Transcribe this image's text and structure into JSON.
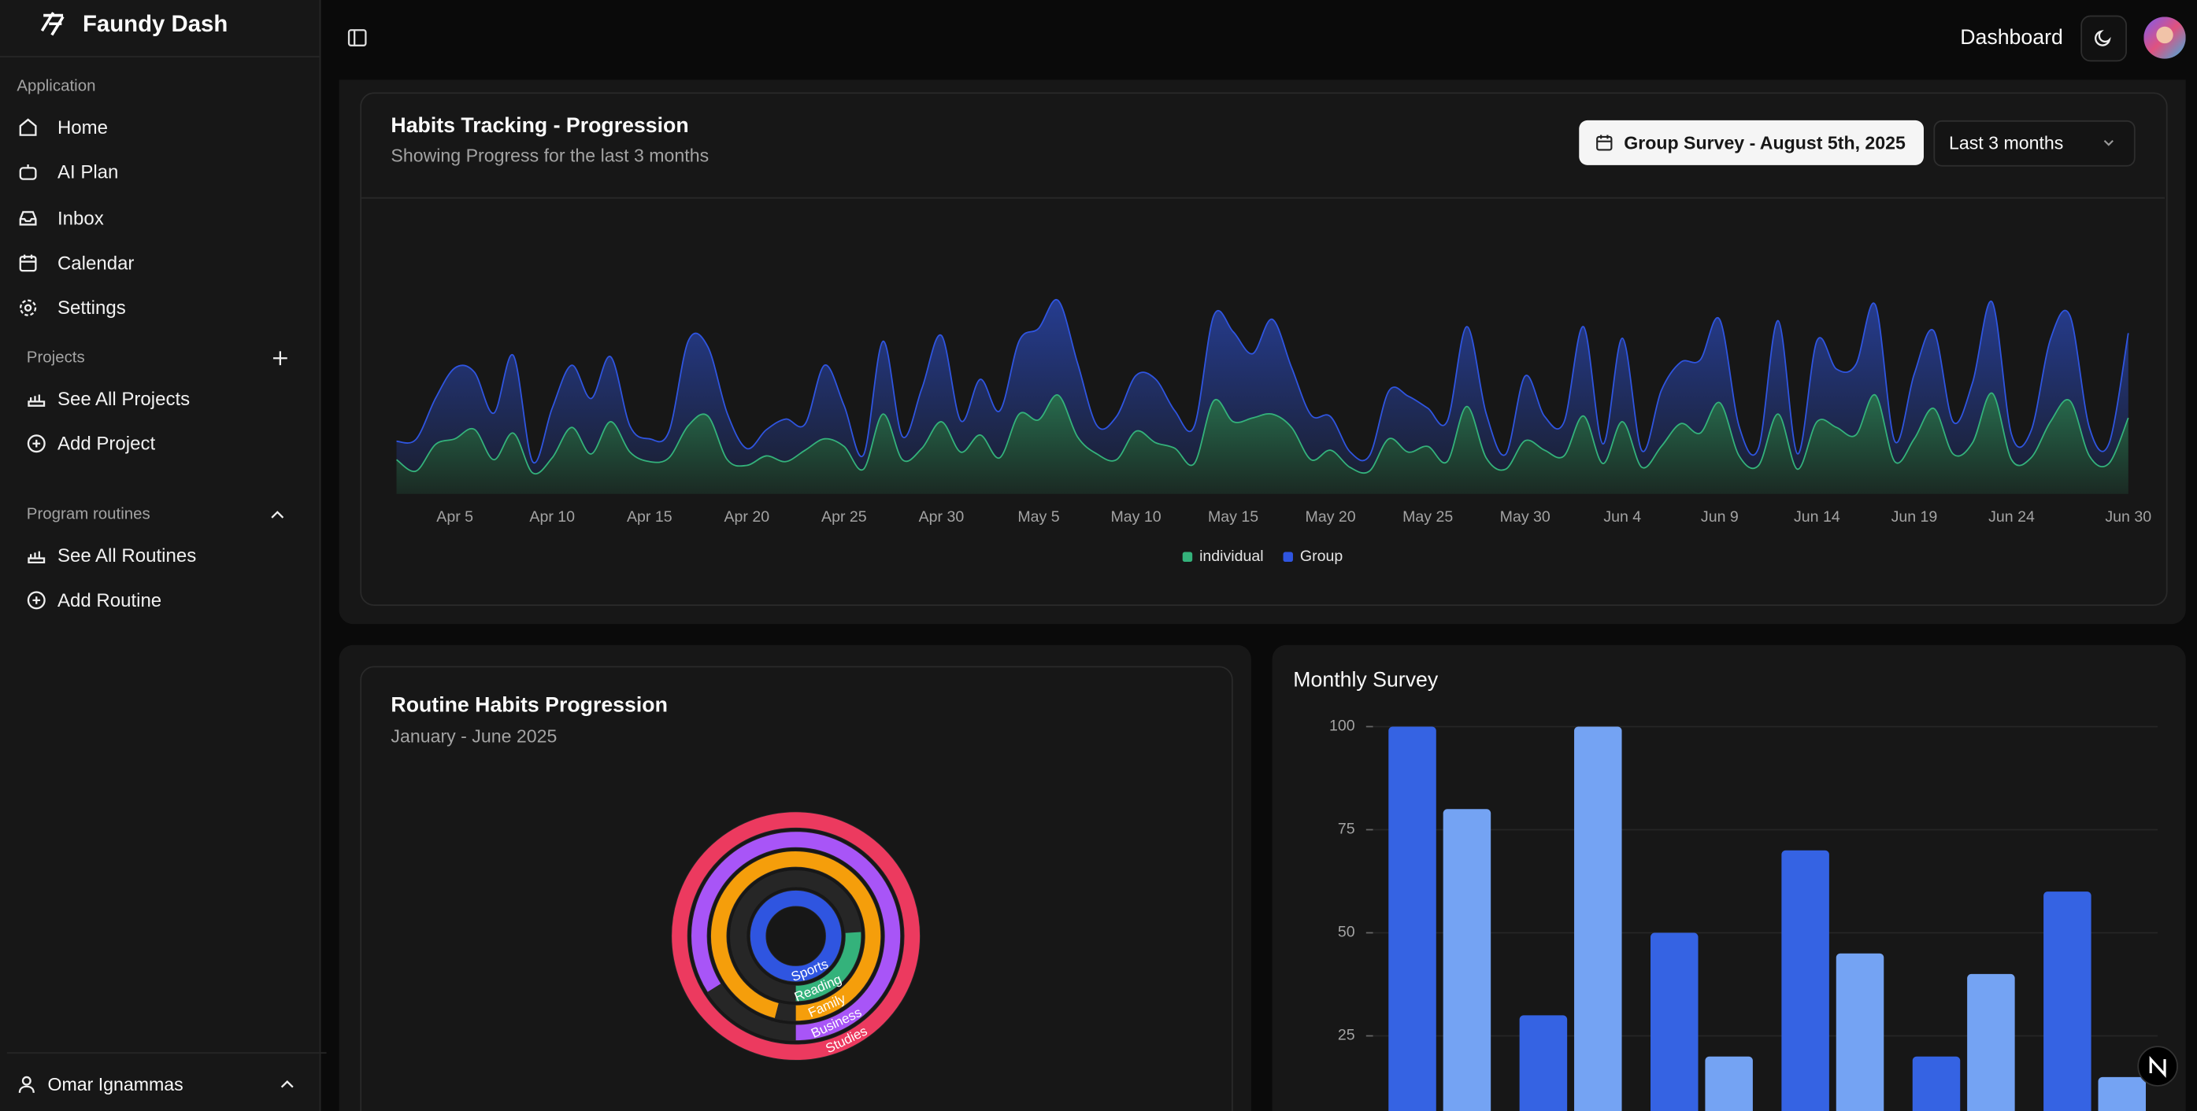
{
  "sidebar": {
    "brand": "Faundy Dash",
    "group_label": "Application",
    "items": [
      "Home",
      "AI Plan",
      "Inbox",
      "Calendar",
      "Settings"
    ],
    "projects_label": "Projects",
    "projects": [
      "See All Projects",
      "Add Project"
    ],
    "routines_label": "Program routines",
    "routines": [
      "See All Routines",
      "Add Routine"
    ],
    "user": "Omar Ignammas"
  },
  "header": {
    "title": "Dashboard"
  },
  "chart_data": [
    {
      "type": "area",
      "stacked": true,
      "title": "Habits Tracking - Progression",
      "subtitle": "Showing Progress for the last 3 months",
      "date_button": {
        "label": "Group Survey -",
        "date": "August 5th, 2025"
      },
      "range_select": "Last 3 months",
      "categories": [
        null,
        null,
        null,
        "Apr 5",
        null,
        null,
        null,
        null,
        "Apr 10",
        null,
        null,
        null,
        null,
        "Apr 15",
        null,
        null,
        null,
        null,
        "Apr 20",
        null,
        null,
        null,
        null,
        "Apr 25",
        null,
        null,
        null,
        null,
        "Apr 30",
        null,
        null,
        null,
        null,
        "May 5",
        null,
        null,
        null,
        null,
        "May 10",
        null,
        null,
        null,
        null,
        "May 15",
        null,
        null,
        null,
        null,
        "May 20",
        null,
        null,
        null,
        null,
        "May 25",
        null,
        null,
        null,
        null,
        "May 30",
        null,
        null,
        null,
        null,
        "Jun 4",
        null,
        null,
        null,
        null,
        "Jun 9",
        null,
        null,
        null,
        null,
        "Jun 14",
        null,
        null,
        null,
        null,
        "Jun 19",
        null,
        null,
        null,
        null,
        "Jun 24",
        null,
        null,
        null,
        null,
        null,
        "Jun 30"
      ],
      "ylim": [
        0,
        1200
      ],
      "series": [
        {
          "name": "individual",
          "color": "#34b27b",
          "values": [
            180,
            120,
            260,
            290,
            340,
            180,
            320,
            110,
            190,
            350,
            210,
            380,
            220,
            170,
            190,
            360,
            410,
            180,
            150,
            200,
            170,
            230,
            290,
            250,
            130,
            420,
            180,
            240,
            380,
            220,
            310,
            190,
            420,
            390,
            520,
            300,
            210,
            180,
            330,
            270,
            240,
            160,
            490,
            380,
            400,
            420,
            350,
            180,
            230,
            140,
            120,
            290,
            220,
            250,
            170,
            460,
            190,
            130,
            280,
            230,
            200,
            410,
            160,
            380,
            140,
            250,
            370,
            320,
            480,
            200,
            150,
            420,
            130,
            380,
            350,
            310,
            520,
            170,
            290,
            450,
            210,
            270,
            530,
            180,
            190,
            380,
            490,
            200,
            160,
            400
          ]
        },
        {
          "name": "Group",
          "color": "#2f55e0",
          "values": [
            97,
            167,
            242,
            373,
            301,
            245,
            409,
            59,
            261,
            327,
            292,
            342,
            137,
            120,
            138,
            446,
            364,
            243,
            89,
            137,
            224,
            138,
            387,
            215,
            75,
            383,
            122,
            315,
            454,
            165,
            293,
            247,
            385,
            481,
            498,
            388,
            149,
            227,
            293,
            335,
            197,
            197,
            448,
            473,
            338,
            499,
            315,
            235,
            177,
            82,
            81,
            252,
            294,
            201,
            213,
            420,
            233,
            78,
            340,
            178,
            178,
            470,
            103,
            439,
            88,
            294,
            323,
            385,
            438,
            155,
            92,
            492,
            81,
            426,
            307,
            371,
            475,
            107,
            341,
            408,
            169,
            317,
            480,
            132,
            141,
            434,
            448,
            149,
            103,
            446
          ]
        }
      ]
    },
    {
      "type": "radial",
      "title": "Routine Habits Progression",
      "subtitle": "January - June 2025",
      "categories": [
        "Sports",
        "Reading",
        "Family",
        "Business",
        "Studies"
      ],
      "values": [
        100,
        26,
        96,
        84,
        100
      ],
      "colors": [
        "#2f55e0",
        "#34b27b",
        "#f59e0b",
        "#a855f7",
        "#ec3a5f"
      ],
      "lim": [
        0,
        100
      ]
    },
    {
      "type": "bar",
      "title": "Monthly Survey",
      "ylim": [
        0,
        100
      ],
      "yticks": [
        25,
        50,
        75,
        100
      ],
      "grid": true,
      "series": [
        {
          "color": "#3563e3",
          "values": [
            100,
            30,
            50,
            70,
            20,
            60
          ]
        },
        {
          "color": "#74a3f3",
          "values": [
            80,
            100,
            20,
            45,
            40,
            15
          ]
        }
      ]
    }
  ]
}
